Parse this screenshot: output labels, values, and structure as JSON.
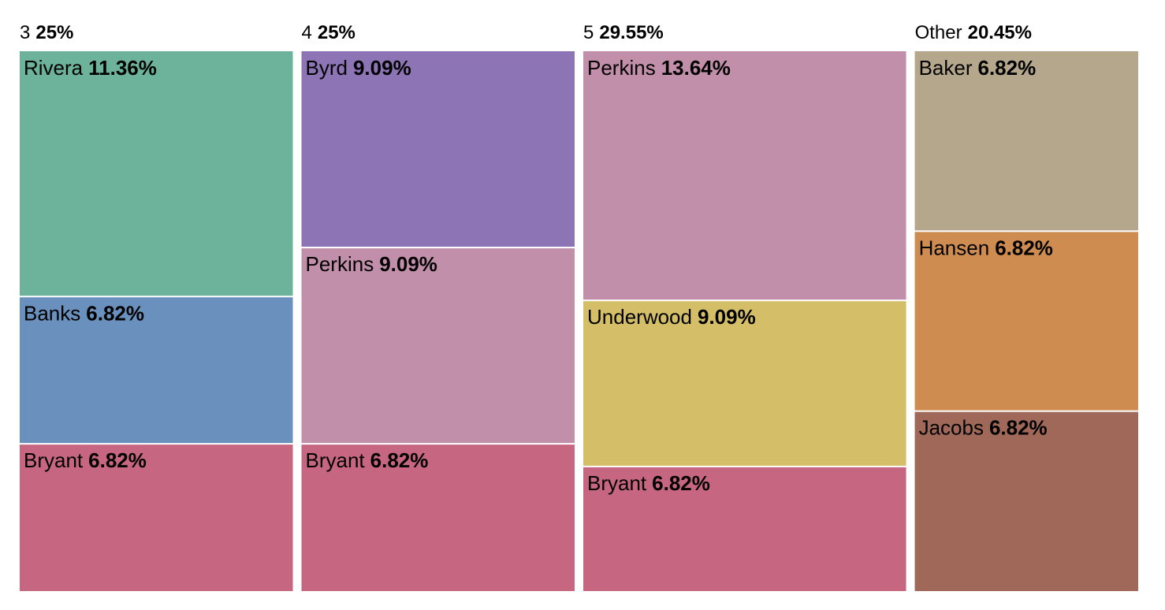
{
  "chart_data": {
    "type": "treemap",
    "groups": [
      {
        "name": "3",
        "value": 25,
        "value_label": "25%",
        "children": [
          {
            "name": "Rivera",
            "value": 11.36,
            "value_label": "11.36%",
            "color": "#6db39b"
          },
          {
            "name": "Banks",
            "value": 6.82,
            "value_label": "6.82%",
            "color": "#6a90bd"
          },
          {
            "name": "Bryant",
            "value": 6.82,
            "value_label": "6.82%",
            "color": "#c66681"
          }
        ]
      },
      {
        "name": "4",
        "value": 25,
        "value_label": "25%",
        "children": [
          {
            "name": "Byrd",
            "value": 9.09,
            "value_label": "9.09%",
            "color": "#8c74b5"
          },
          {
            "name": "Perkins",
            "value": 9.09,
            "value_label": "9.09%",
            "color": "#c28faa"
          },
          {
            "name": "Bryant",
            "value": 6.82,
            "value_label": "6.82%",
            "color": "#c66681"
          }
        ]
      },
      {
        "name": "5",
        "value": 29.55,
        "value_label": "29.55%",
        "children": [
          {
            "name": "Perkins",
            "value": 13.64,
            "value_label": "13.64%",
            "color": "#c28faa"
          },
          {
            "name": "Underwood",
            "value": 9.09,
            "value_label": "9.09%",
            "color": "#d4bf68"
          },
          {
            "name": "Bryant",
            "value": 6.82,
            "value_label": "6.82%",
            "color": "#c66681"
          }
        ]
      },
      {
        "name": "Other",
        "value": 20.45,
        "value_label": "20.45%",
        "children": [
          {
            "name": "Baker",
            "value": 6.82,
            "value_label": "6.82%",
            "color": "#b5a78c"
          },
          {
            "name": "Hansen",
            "value": 6.82,
            "value_label": "6.82%",
            "color": "#cf8c51"
          },
          {
            "name": "Jacobs",
            "value": 6.82,
            "value_label": "6.82%",
            "color": "#a06858"
          }
        ]
      }
    ]
  }
}
